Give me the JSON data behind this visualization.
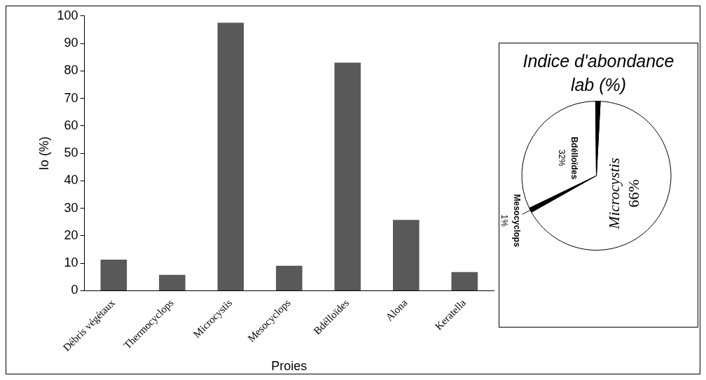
{
  "chart_data": [
    {
      "type": "bar",
      "xlabel": "Proies",
      "ylabel": "Io (%)",
      "categories": [
        "Débris végétaux",
        "Thermocyclops",
        "Microcystis",
        "Mesocyclops",
        "Bdélloïdes",
        "Alona",
        "Keratella"
      ],
      "values": [
        11.3,
        5.8,
        97.5,
        9.1,
        83,
        25.8,
        6.8
      ],
      "color": "#595959",
      "ylim": [
        0,
        100
      ],
      "yticks": [
        0,
        10,
        20,
        30,
        40,
        50,
        60,
        70,
        80,
        90,
        100
      ],
      "grid": false,
      "legend": false
    },
    {
      "type": "pie",
      "title": "Indice d'abondance lab (%)",
      "categories": [
        "Microcystis",
        "Mesocyclops",
        "Bdélloïdes",
        null
      ],
      "values": [
        66,
        1,
        32,
        1
      ],
      "colors": [
        "#ffffff",
        "#000000",
        "#ffffff",
        "#000000"
      ],
      "value_labels": [
        "66%",
        "1%",
        "32%",
        null
      ],
      "legend": false
    }
  ]
}
